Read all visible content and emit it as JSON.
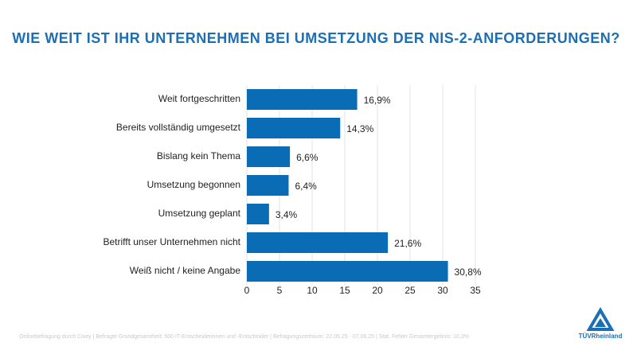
{
  "chart_data": {
    "type": "bar",
    "orientation": "horizontal",
    "title": "WIE WEIT IST IHR UNTERNEHMEN BEI UMSETZUNG DER NIS-2-ANFORDERUNGEN?",
    "categories": [
      "Weit fortgeschritten",
      "Bereits vollständig umgesetzt",
      "Bislang kein Thema",
      "Umsetzung begonnen",
      "Umsetzung geplant",
      "Betrifft unser Unternehmen nicht",
      "Weiß nicht / keine Angabe"
    ],
    "values": [
      16.9,
      14.3,
      6.6,
      6.4,
      3.4,
      21.6,
      30.8
    ],
    "value_labels": [
      "16,9%",
      "14,3%",
      "6,6%",
      "6,4%",
      "3,4%",
      "21,6%",
      "30,8%"
    ],
    "color": "#0a6cb5",
    "xlim": [
      0,
      35
    ],
    "xticks": [
      0,
      5,
      10,
      15,
      20,
      25,
      30,
      35
    ],
    "grid": true
  },
  "footer": "Onlinebefragung durch Civey | Befragte Grundgesamtheit: 500 IT-Entscheiderinnen und -Entscheider | Befragungszeitraum: 22.05.25 - 07.06.25 | Stat. Fehler Gesamtergebnis: 10,3%",
  "logo": "TÜVRheinland"
}
